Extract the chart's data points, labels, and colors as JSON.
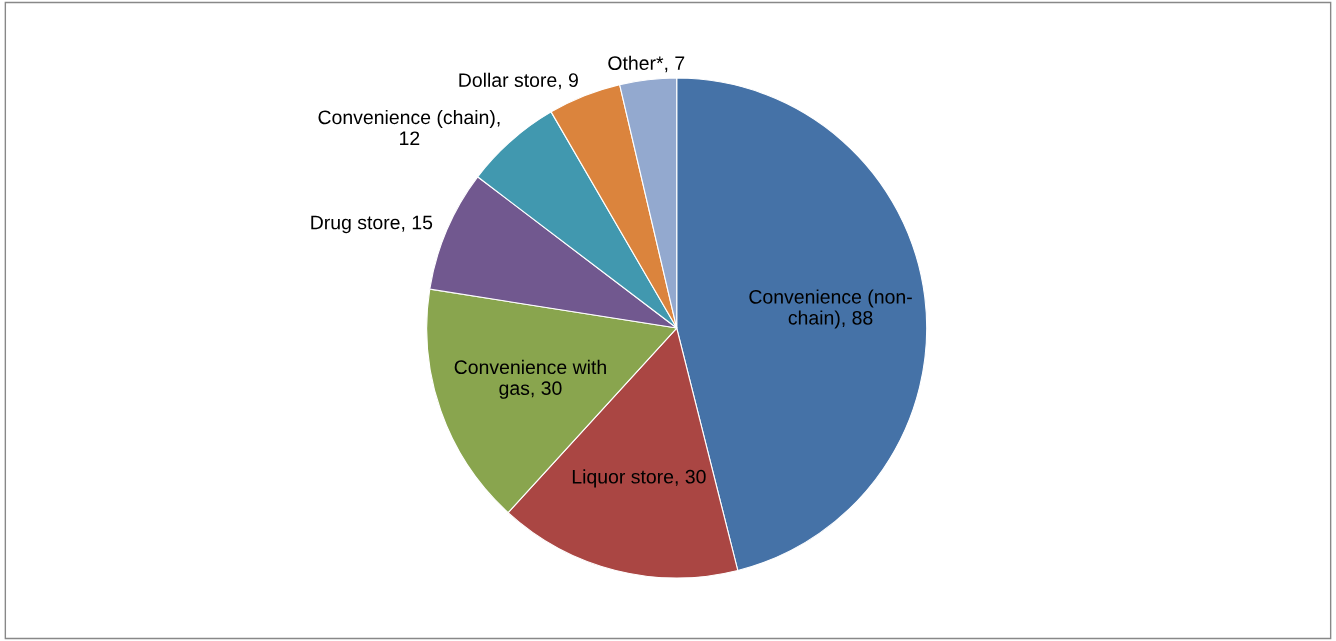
{
  "chart_data": {
    "type": "pie",
    "categories": [
      "Convenience (non-chain)",
      "Liquor store",
      "Convenience with gas",
      "Drug store",
      "Convenience (chain)",
      "Dollar store",
      "Other*"
    ],
    "values": [
      88,
      30,
      30,
      15,
      12,
      9,
      7
    ],
    "colors": [
      "#4572a7",
      "#aa4643",
      "#89a54e",
      "#71588f",
      "#4198af",
      "#db843d",
      "#93a9cf"
    ],
    "value_labels": [
      ", 88",
      ", 30",
      ", 30",
      ", 15",
      ", 12",
      ", 9",
      ", 7"
    ],
    "legend": false
  }
}
